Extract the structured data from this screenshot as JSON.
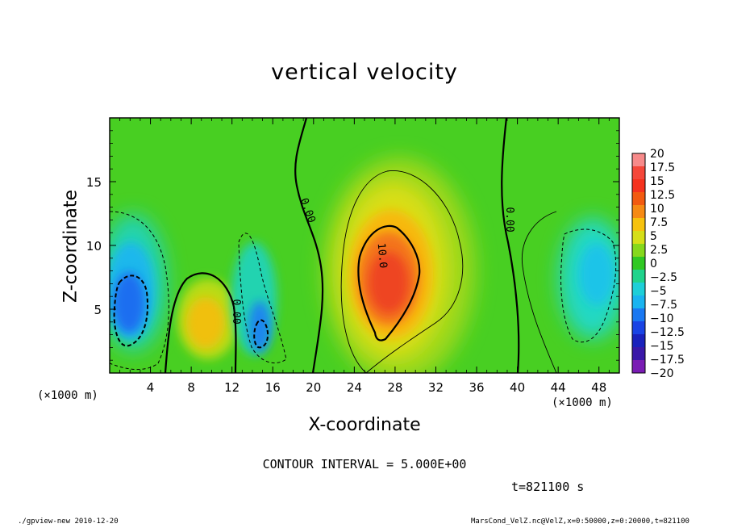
{
  "chart_data": {
    "type": "heatmap",
    "title": "vertical velocity",
    "xlabel": "X-coordinate",
    "ylabel": "Z-coordinate",
    "x_unit_label": "(×1000 m)",
    "x_ticks": [
      4,
      8,
      12,
      16,
      20,
      24,
      28,
      32,
      36,
      40,
      44,
      48
    ],
    "y_ticks": [
      5,
      10,
      15
    ],
    "xlim": [
      0,
      50
    ],
    "ylim": [
      0,
      20
    ],
    "colorbar": {
      "ticks": [
        "20",
        "17.5",
        "15",
        "12.5",
        "10",
        "7.5",
        "5",
        "2.5",
        "0",
        "−2.5",
        "−5",
        "−7.5",
        "−10",
        "−12.5",
        "−15",
        "−17.5",
        "−20"
      ],
      "range": [
        -20,
        20
      ],
      "colors": [
        "#f78a8a",
        "#f5473a",
        "#f5321e",
        "#f25a10",
        "#f68a14",
        "#f6c20e",
        "#d6df18",
        "#86d81c",
        "#30c823",
        "#20d38c",
        "#1ecfd8",
        "#1ab4f0",
        "#1a78f2",
        "#1a44e4",
        "#1a22bc",
        "#3a18a8",
        "#7a1cb4"
      ]
    },
    "contour_labels": [
      "0.00",
      "0.00",
      "10.0",
      "0.00"
    ],
    "features": [
      {
        "kind": "updraft",
        "x": 27,
        "z": 7,
        "peak": 12.5
      },
      {
        "kind": "updraft",
        "x": 9.5,
        "z": 3.5,
        "peak": 7.5
      },
      {
        "kind": "downdraft",
        "x": 2,
        "z": 6,
        "peak": -12.5
      },
      {
        "kind": "downdraft",
        "x": 14.5,
        "z": 4,
        "peak": -10
      },
      {
        "kind": "downdraft",
        "x": 47,
        "z": 8,
        "peak": -7.5
      }
    ]
  },
  "annotations": {
    "contour_interval": "CONTOUR INTERVAL = 5.000E+00",
    "time": "t=821100 s",
    "footer_left": "./gpview-new   2010-12-20",
    "footer_right": "MarsCond_VelZ.nc@VelZ,x=0:50000,z=0:20000,t=821100"
  }
}
